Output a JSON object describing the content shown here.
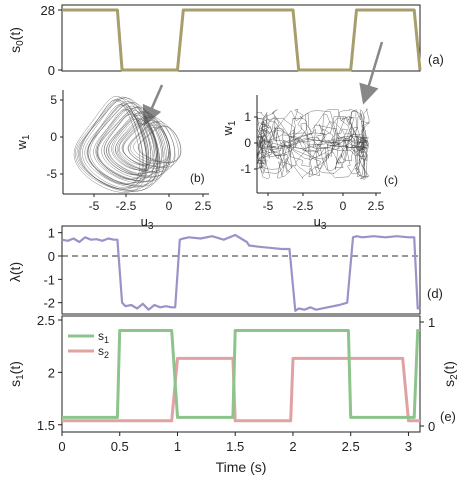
{
  "chart_data": [
    {
      "id": "a",
      "type": "line",
      "panel_label": "(a)",
      "ylabel": "s_0(t)",
      "yticks": [
        "28",
        "0"
      ],
      "ylim": [
        0,
        28
      ],
      "xlim": [
        0,
        3.1
      ],
      "series": [
        {
          "color": "#a89d6c",
          "x": [
            0,
            0.48,
            0.52,
            1.0,
            1.05,
            2.0,
            2.05,
            2.5,
            2.55,
            3.05,
            3.1
          ],
          "y": [
            28,
            28,
            0,
            0,
            28,
            28,
            0,
            0,
            28,
            28,
            0
          ]
        }
      ]
    },
    {
      "id": "b",
      "type": "line",
      "panel_label": "(b)",
      "xlabel": "u_3",
      "ylabel": "w_1",
      "xticks": [
        "-5",
        "-2.5",
        "0",
        "2.5"
      ],
      "yticks": [
        "5",
        "0",
        "-5"
      ],
      "xlim": [
        -6,
        2.5
      ],
      "ylim": [
        -6.5,
        6.5
      ],
      "description_shape": "dense spiral attractor"
    },
    {
      "id": "c",
      "type": "line",
      "panel_label": "(c)",
      "xlabel": "u_3",
      "ylabel": "w_1",
      "xticks": [
        "-5",
        "-2.5",
        "0",
        "2.5"
      ],
      "yticks": [
        "1",
        "0",
        "-1"
      ],
      "xlim": [
        -6,
        2.5
      ],
      "ylim": [
        -1.8,
        1.8
      ],
      "description_shape": "chaotic trajectory band"
    },
    {
      "id": "d",
      "type": "line",
      "panel_label": "(d)",
      "ylabel": "λ(t)",
      "yticks": [
        "1",
        "0",
        "-1",
        "-2"
      ],
      "ylim": [
        -2.4,
        1.2
      ],
      "xlim": [
        0,
        3.1
      ],
      "zero_line": true,
      "series": [
        {
          "color": "#9b93c8",
          "x": [
            0,
            0.05,
            0.1,
            0.15,
            0.2,
            0.25,
            0.3,
            0.35,
            0.4,
            0.45,
            0.48,
            0.52,
            0.55,
            0.6,
            0.65,
            0.7,
            0.75,
            0.8,
            0.85,
            0.9,
            0.95,
            0.98,
            1.02,
            1.05,
            1.1,
            1.2,
            1.3,
            1.4,
            1.5,
            1.6,
            1.62,
            1.7,
            1.8,
            1.9,
            1.97,
            2.02,
            2.05,
            2.1,
            2.15,
            2.2,
            2.3,
            2.4,
            2.47,
            2.52,
            2.55,
            2.6,
            2.7,
            2.8,
            2.9,
            3.0,
            3.05,
            3.08,
            3.1
          ],
          "y": [
            0.7,
            0.65,
            0.75,
            0.6,
            0.8,
            0.7,
            0.72,
            0.65,
            0.75,
            0.7,
            0.7,
            -2.0,
            -2.15,
            -2.1,
            -2.25,
            -2.05,
            -2.3,
            -2.1,
            -2.2,
            -2.15,
            -2.2,
            -2.2,
            0.7,
            0.75,
            0.8,
            0.75,
            0.85,
            0.7,
            0.9,
            0.6,
            0.45,
            0.4,
            0.35,
            0.3,
            0.3,
            -2.35,
            -2.25,
            -2.3,
            -2.2,
            -2.3,
            -2.2,
            -2.1,
            -2.0,
            0.8,
            0.85,
            0.8,
            0.85,
            0.8,
            0.85,
            0.8,
            0.8,
            -2.25,
            -2.2
          ]
        }
      ]
    },
    {
      "id": "e",
      "type": "line",
      "panel_label": "(e)",
      "xlabel": "Time (s)",
      "ylabel": "s_1(t)",
      "ylabel_right": "s_2(t)",
      "xticks": [
        "0",
        "0.5",
        "1",
        "1.5",
        "2",
        "2.5",
        "3"
      ],
      "yticks": [
        "2.5",
        "2",
        "1.5"
      ],
      "yticks_right": [
        "1",
        "0"
      ],
      "xlim": [
        0,
        3.1
      ],
      "ylim": [
        1.45,
        2.5
      ],
      "ylim_right": [
        0,
        1
      ],
      "legend": {
        "placement": "top-left",
        "entries": [
          "s_1",
          "s_2"
        ]
      },
      "series": [
        {
          "name": "s_1",
          "color": "#8cc48c",
          "axis": "left",
          "x": [
            0,
            0.48,
            0.5,
            0.95,
            1.0,
            1.48,
            1.5,
            1.98,
            2.0,
            2.48,
            2.5,
            2.95,
            3.0,
            3.05,
            3.08,
            3.1
          ],
          "y": [
            1.57,
            1.57,
            2.4,
            2.4,
            1.57,
            1.57,
            2.4,
            2.4,
            2.4,
            2.4,
            1.57,
            1.57,
            1.57,
            1.57,
            2.4,
            2.4
          ]
        },
        {
          "name": "s_2",
          "color": "#e0a2a2",
          "axis": "right",
          "x": [
            0,
            0.95,
            1.0,
            1.48,
            1.5,
            1.98,
            2.0,
            2.95,
            3.0,
            3.05,
            3.1
          ],
          "y": [
            0.05,
            0.05,
            0.65,
            0.65,
            0.05,
            0.05,
            0.65,
            0.65,
            0.05,
            0.05,
            0.05
          ]
        }
      ]
    }
  ]
}
